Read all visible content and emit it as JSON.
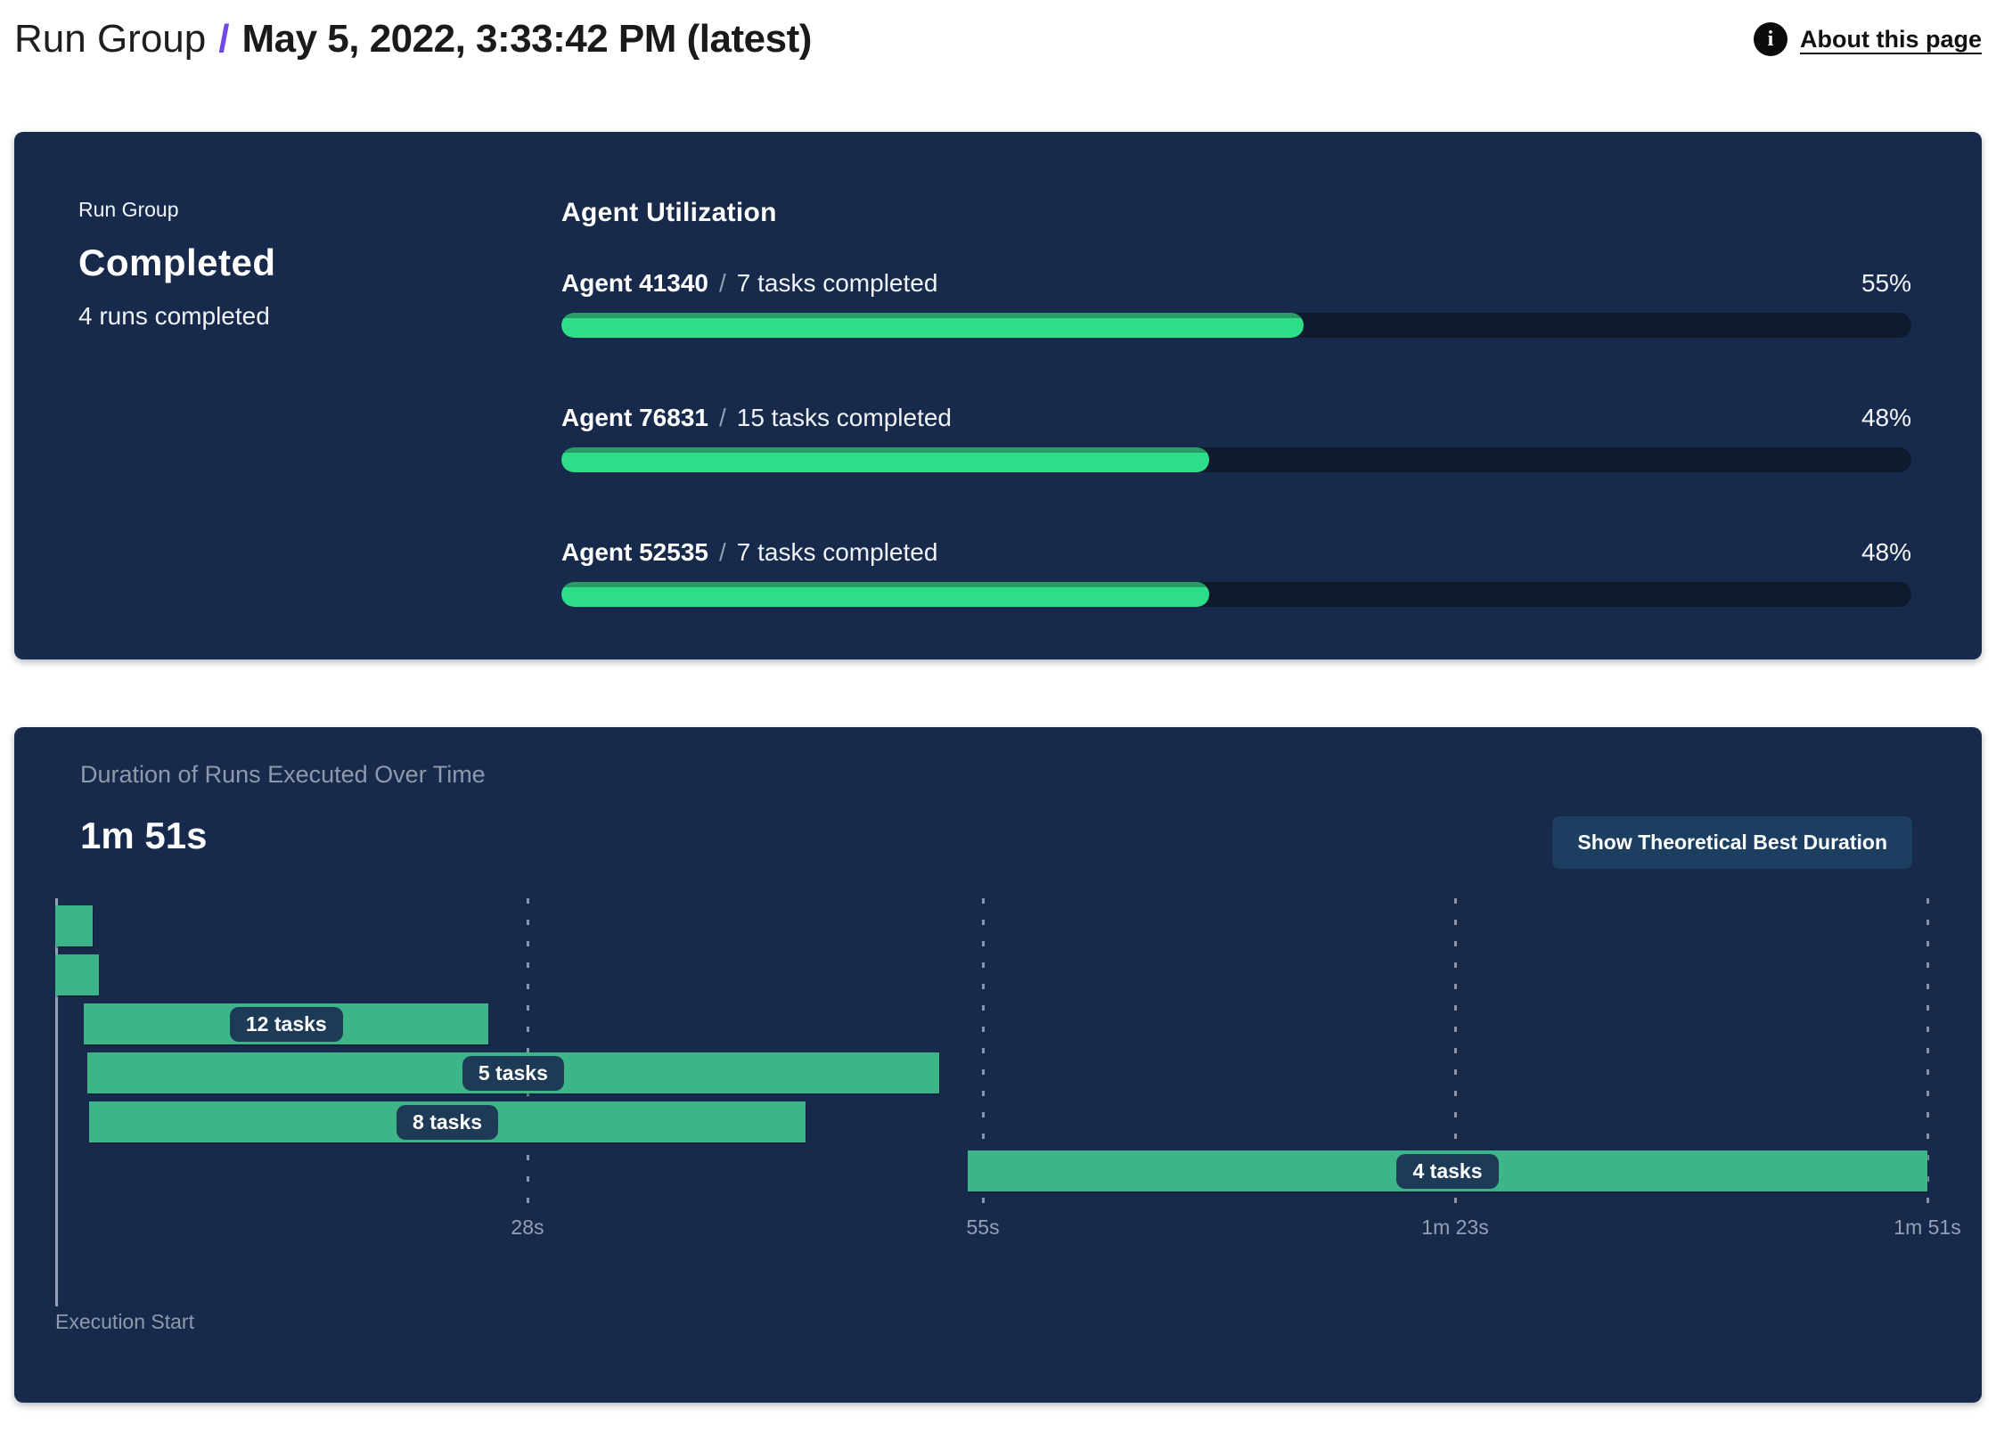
{
  "header": {
    "breadcrumb_root": "Run Group",
    "separator": "/",
    "title": "May 5, 2022, 3:33:42 PM (latest)",
    "about_label": "About this page",
    "info_icon_glyph": "i"
  },
  "status_panel": {
    "label": "Run Group",
    "status": "Completed",
    "runs_summary": "4 runs completed",
    "utilization": {
      "title": "Agent Utilization",
      "separator": "/",
      "agents": [
        {
          "name": "Agent 41340",
          "tasks": "7 tasks completed",
          "percent": "55%",
          "value": 55
        },
        {
          "name": "Agent 76831",
          "tasks": "15 tasks completed",
          "percent": "48%",
          "value": 48
        },
        {
          "name": "Agent 52535",
          "tasks": "7 tasks completed",
          "percent": "48%",
          "value": 48
        }
      ]
    }
  },
  "duration_panel": {
    "title": "Duration of Runs Executed Over Time",
    "total_duration": "1m 51s",
    "button_label": "Show Theoretical Best Duration"
  },
  "chart_data": {
    "type": "bar",
    "subtype": "gantt-timeline",
    "title": "Duration of Runs Executed Over Time",
    "total_duration_label": "1m 51s",
    "x_unit": "seconds",
    "x_range": [
      0,
      111
    ],
    "axis_label": "Execution Start",
    "grid": "dashed-vertical",
    "ticks": [
      {
        "seconds": 28,
        "label": "28s"
      },
      {
        "seconds": 55,
        "label": "55s"
      },
      {
        "seconds": 83,
        "label": "1m 23s"
      },
      {
        "seconds": 111,
        "label": "1m 51s"
      }
    ],
    "runs": [
      {
        "start": 0,
        "end": 2.2,
        "label": ""
      },
      {
        "start": 0,
        "end": 2.6,
        "label": ""
      },
      {
        "start": 1.7,
        "end": 25.7,
        "label": "12 tasks"
      },
      {
        "start": 1.9,
        "end": 52.4,
        "label": "5 tasks"
      },
      {
        "start": 2.0,
        "end": 44.5,
        "label": "8 tasks"
      },
      {
        "start": 54.1,
        "end": 111,
        "label": "4 tasks"
      }
    ]
  },
  "colors": {
    "panel_bg": "#172a4b",
    "progress_fill": "#2edd88",
    "progress_fill_edge": "#2a9a66",
    "progress_track": "#0d1b2c",
    "gantt_bar": "#3eb489",
    "task_pill_bg": "#1d3a57",
    "accent_slash": "#7048e8",
    "muted_text": "#8e9aac",
    "button_bg": "#1c3e61",
    "info_icon_bg": "#0b0b0b"
  }
}
